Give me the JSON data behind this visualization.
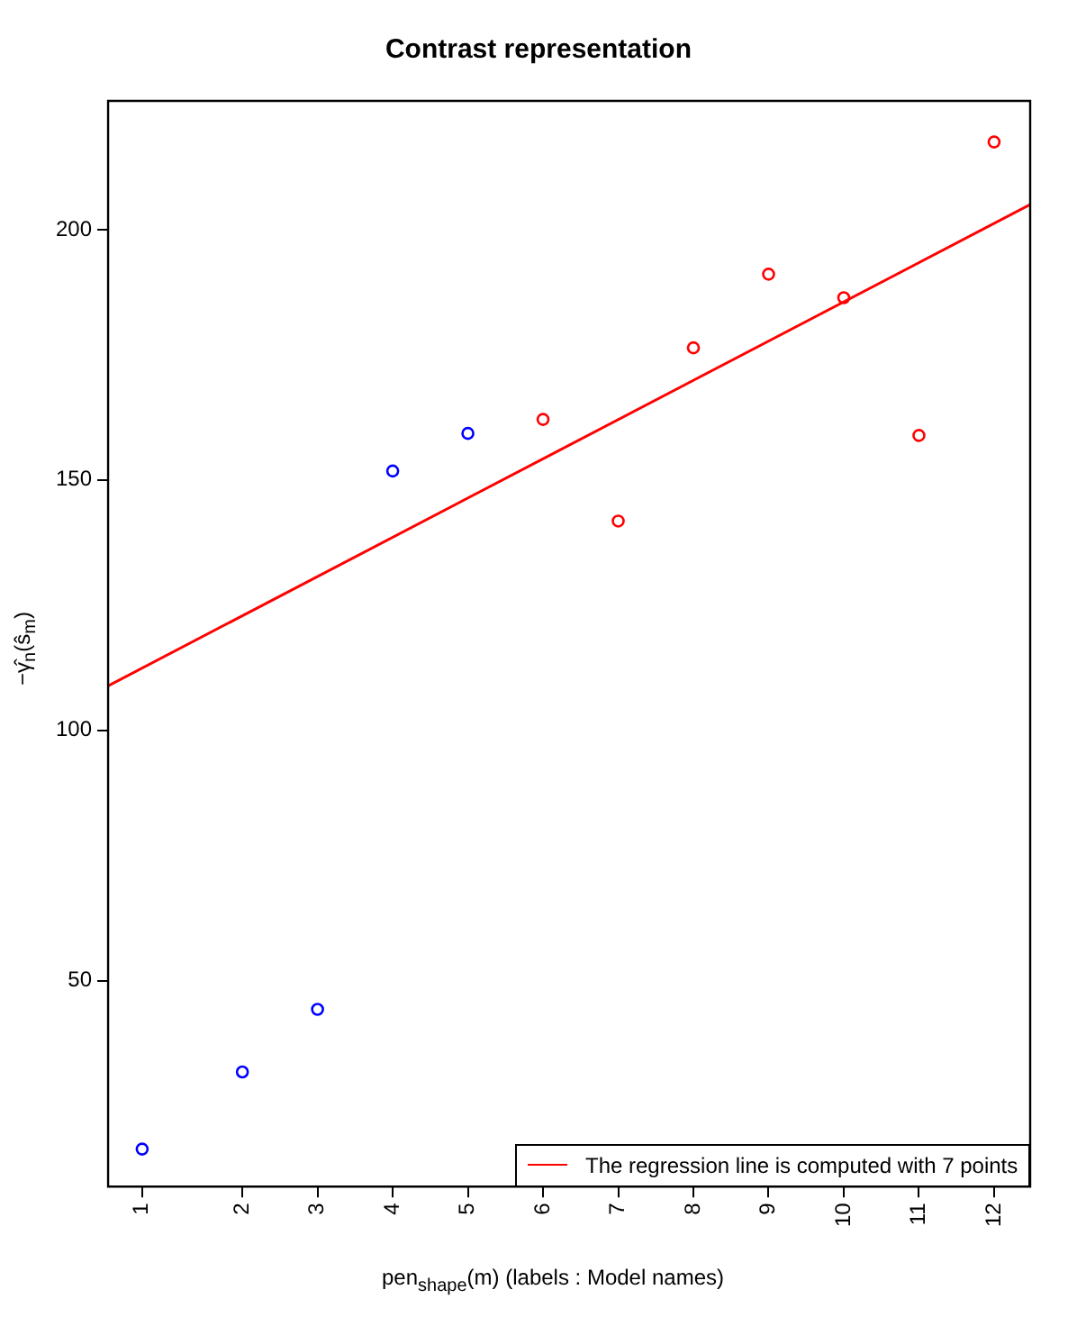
{
  "chart_data": {
    "type": "scatter",
    "title": "Contrast representation",
    "xlabel": "pen$_{shape}$(m) (labels : Model names)",
    "ylabel": "−γ̂$_{n}$(ŝ$_{m}$)",
    "xlim": [
      0.214,
      12.48
    ],
    "xticks": [
      {
        "value": 0.667,
        "label": "1"
      },
      2,
      3,
      4,
      5,
      6,
      7,
      8,
      9,
      10,
      11,
      12
    ],
    "ylim": [
      8.9,
      225.7
    ],
    "yticks": [
      50,
      100,
      150,
      200
    ],
    "series": [
      {
        "color": "#0000ff",
        "x": [
          0.667,
          2,
          3,
          4,
          5
        ],
        "values": [
          16.4,
          31.8,
          44.3,
          151.8,
          159.3
        ]
      },
      {
        "color": "#ff0000",
        "x": [
          6,
          7,
          8,
          9,
          10,
          11,
          12
        ],
        "values": [
          162.1,
          141.8,
          176.4,
          191.1,
          186.4,
          158.9,
          217.5
        ]
      },
      {
        "type": "line",
        "name": "The regression line is computed with 7 points",
        "color": "#ff0000",
        "x": [
          0.214,
          12.48
        ],
        "values": [
          108.9,
          205
        ],
        "marker": "none"
      }
    ],
    "marker": "circle",
    "grid": false,
    "legend": "bottom right"
  }
}
